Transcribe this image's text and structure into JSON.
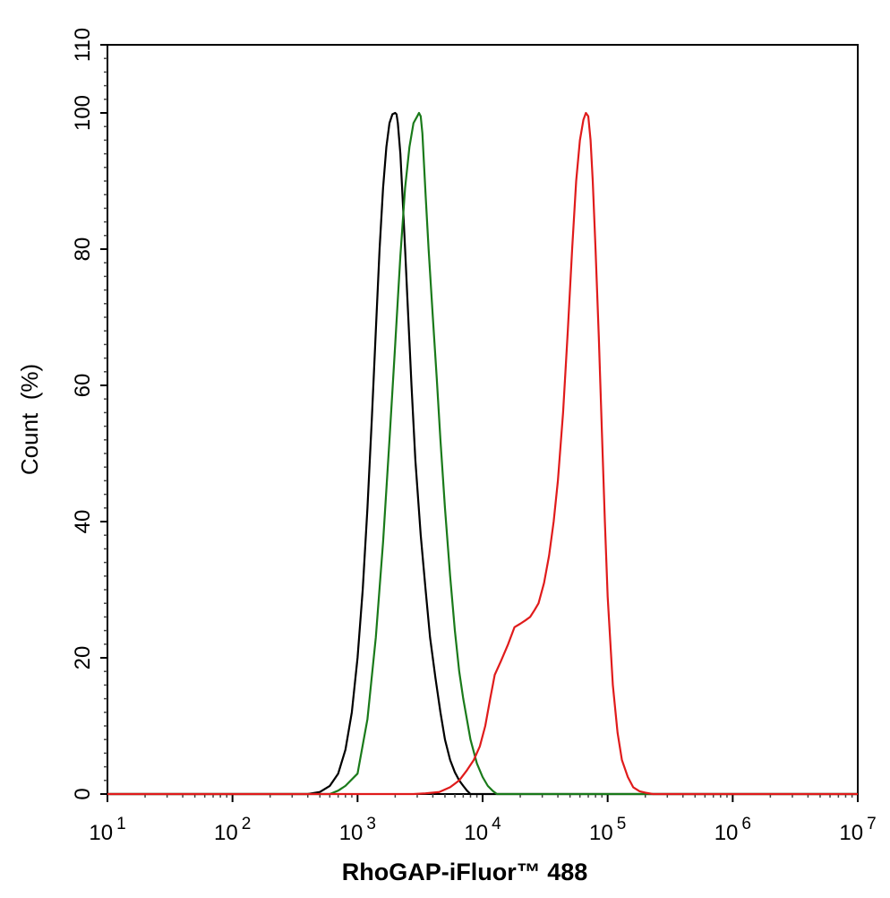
{
  "chart_data": {
    "type": "line",
    "xscale": "log",
    "xlim": [
      10,
      10000000
    ],
    "ylim": [
      0,
      110
    ],
    "xlabel": "RhoGAP-iFluor™ 488",
    "ylabel": "Count  (%)",
    "x_ticks": [
      {
        "value": 10,
        "base": "10",
        "exp": "1"
      },
      {
        "value": 100,
        "base": "10",
        "exp": "2"
      },
      {
        "value": 1000,
        "base": "10",
        "exp": "3"
      },
      {
        "value": 10000,
        "base": "10",
        "exp": "4"
      },
      {
        "value": 100000,
        "base": "10",
        "exp": "5"
      },
      {
        "value": 1000000,
        "base": "10",
        "exp": "6"
      },
      {
        "value": 10000000,
        "base": "10",
        "exp": "7"
      }
    ],
    "y_ticks": [
      "0",
      "20",
      "40",
      "60",
      "80",
      "100",
      "110"
    ],
    "grid": false,
    "legend": "none",
    "series": [
      {
        "color": "#000000",
        "x": [
          10,
          400,
          500,
          600,
          700,
          800,
          900,
          1000,
          1100,
          1200,
          1300,
          1400,
          1500,
          1600,
          1700,
          1800,
          1900,
          2000,
          2050,
          2100,
          2200,
          2300,
          2400,
          2500,
          2700,
          2900,
          3200,
          3500,
          3800,
          4200,
          4600,
          5000,
          5500,
          6000,
          6500,
          7000,
          7500,
          8000,
          10000000
        ],
        "y": [
          0,
          0,
          0.3,
          1.2,
          3,
          6.5,
          12,
          20,
          30,
          42,
          55,
          68,
          80,
          89,
          95,
          98.5,
          99.8,
          100,
          99.8,
          98.5,
          94,
          87,
          80,
          73,
          60,
          49,
          38,
          30,
          23,
          17,
          12,
          8,
          5,
          3.2,
          2,
          1.2,
          0.5,
          0,
          0
        ]
      },
      {
        "color": "#1a7a1a",
        "x": [
          10,
          600,
          700,
          800,
          1000,
          1200,
          1400,
          1600,
          1800,
          2000,
          2200,
          2400,
          2600,
          2800,
          3000,
          3100,
          3200,
          3300,
          3500,
          3700,
          4000,
          4300,
          4600,
          5000,
          5500,
          6000,
          6500,
          7000,
          8000,
          9000,
          10000,
          11000,
          12000,
          13000,
          10000000
        ],
        "y": [
          0,
          0,
          0.5,
          1.2,
          3,
          11,
          23,
          37,
          52,
          66,
          79,
          89,
          95,
          98.5,
          99.5,
          100,
          99.5,
          97,
          88,
          80,
          70,
          61,
          52,
          42,
          32,
          24,
          18,
          14,
          8,
          4.5,
          2.5,
          1.2,
          0.5,
          0,
          0
        ]
      },
      {
        "color": "#e01b1b",
        "x": [
          10,
          2800,
          3500,
          4500,
          5500,
          6500,
          7500,
          8500,
          9500,
          10500,
          11500,
          12500,
          14000,
          16000,
          18000,
          20000,
          22000,
          24000,
          26000,
          28000,
          31000,
          34000,
          37000,
          40000,
          44000,
          48000,
          52000,
          56000,
          60000,
          64000,
          67000,
          70000,
          73000,
          76000,
          80000,
          85000,
          90000,
          95000,
          100000,
          110000,
          120000,
          130000,
          145000,
          160000,
          180000,
          200000,
          230000,
          260000,
          10000000
        ],
        "y": [
          0,
          0,
          0.1,
          0.3,
          1,
          2,
          3.5,
          5,
          7,
          10,
          14,
          17.5,
          19.5,
          22,
          24.5,
          25,
          25.5,
          26,
          27,
          28,
          31,
          35,
          40,
          46,
          56,
          68,
          80,
          90,
          96,
          99,
          100,
          99.5,
          96,
          90,
          80,
          67,
          53,
          40,
          29,
          16,
          9,
          5,
          2.5,
          1,
          0.4,
          0.2,
          0,
          0,
          0
        ]
      }
    ]
  }
}
